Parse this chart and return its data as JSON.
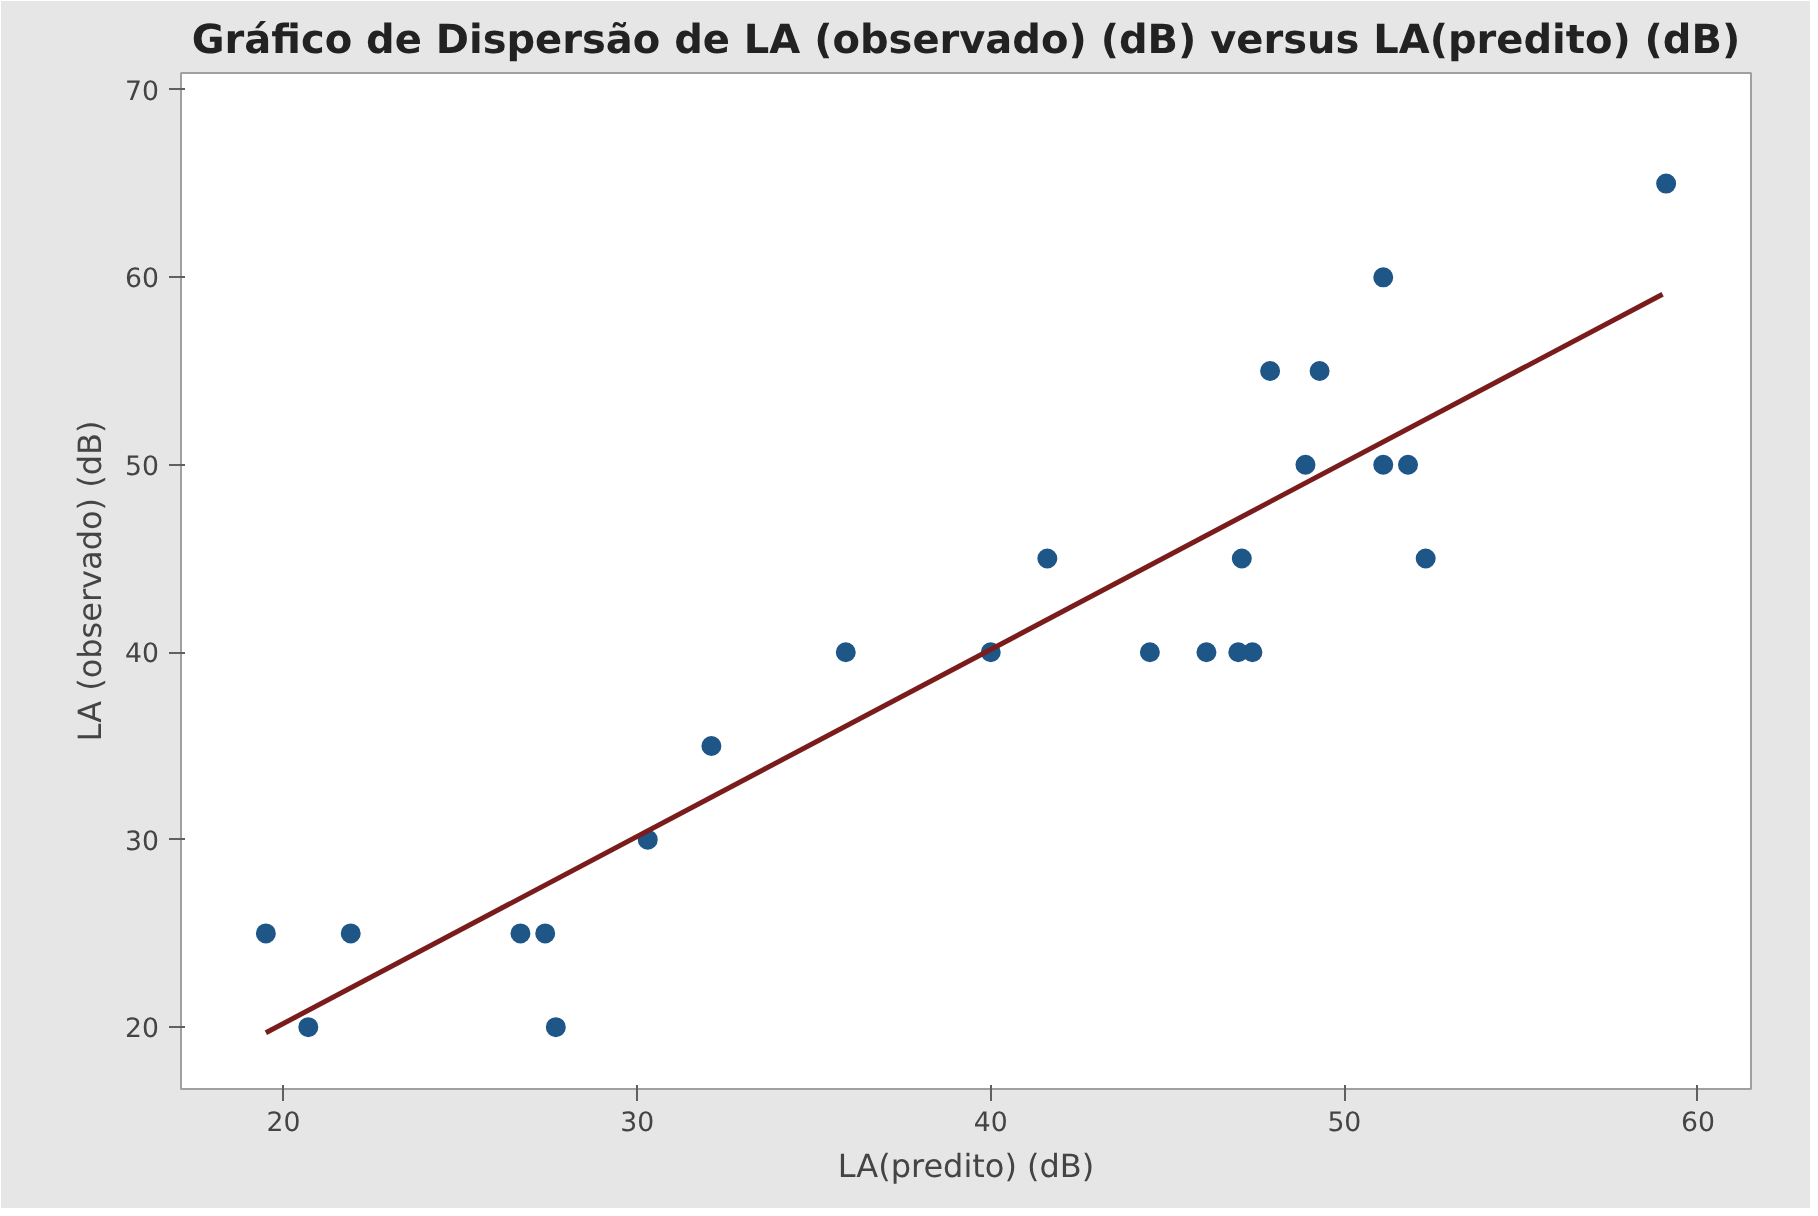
{
  "chart_data": {
    "type": "scatter",
    "title": "Gráfico de Dispersão de LA (observado) (dB) versus LA(predito) (dB)",
    "xlabel": "LA(predito) (dB)",
    "ylabel": "LA (observado) (dB)",
    "xlim": [
      17.1,
      61.5
    ],
    "ylim": [
      16.7,
      70.9
    ],
    "xticks": [
      20,
      30,
      40,
      50,
      60
    ],
    "yticks": [
      20,
      30,
      40,
      50,
      60,
      70
    ],
    "grid": false,
    "series": [
      {
        "marker": "circle",
        "color": "#1f5688",
        "x": [
          19.5,
          20.7,
          21.9,
          26.7,
          27.4,
          27.7,
          30.3,
          32.1,
          35.9,
          40.0,
          41.6,
          44.5,
          46.1,
          47.0,
          47.4,
          47.1,
          47.9,
          48.9,
          49.3,
          51.1,
          51.1,
          51.8,
          52.3,
          59.1
        ],
        "values": [
          25,
          20,
          25,
          25,
          25,
          20,
          30,
          35,
          40,
          40,
          45,
          40,
          40,
          40,
          40,
          45,
          55,
          50,
          55,
          60,
          50,
          50,
          45,
          65
        ]
      },
      {
        "type": "line",
        "color": "#7b1c1c",
        "x": [
          19.5,
          59.0
        ],
        "values": [
          19.7,
          59.1
        ]
      }
    ]
  }
}
